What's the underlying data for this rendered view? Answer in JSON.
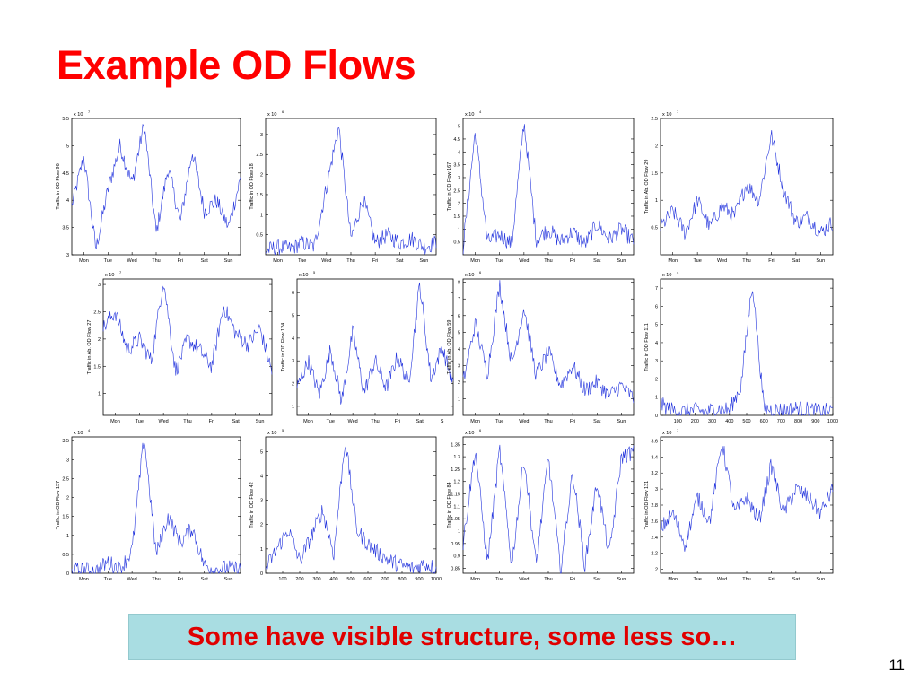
{
  "slide": {
    "title": "Example OD Flows",
    "caption": "Some have visible structure, some less so…",
    "page_number": "11",
    "colors": {
      "title": "#ff0000",
      "caption_text": "#e00000",
      "caption_bg": "#a9dde2",
      "line": "#2233dd"
    }
  },
  "chart_data": [
    {
      "type": "line",
      "ylabel": "Traffic in OD Flow 96",
      "multiplier": "x 10",
      "exponent": "7",
      "yticks": [
        "3",
        "3.5",
        "4",
        "4.5",
        "5",
        "5.5"
      ],
      "ylim": [
        3,
        5.5
      ],
      "xticks": [
        "Mon",
        "Tue",
        "Wed",
        "Thu",
        "Fri",
        "Sat",
        "Sun"
      ],
      "xlim": [
        0,
        7
      ],
      "series": [
        {
          "x_step": 0.5,
          "values": [
            3.9,
            4.8,
            3.1,
            4.2,
            5.0,
            4.3,
            5.4,
            3.4,
            4.6,
            3.6,
            4.9,
            3.8,
            4.0,
            3.5,
            4.4
          ]
        }
      ]
    },
    {
      "type": "line",
      "ylabel": "Traffic in OD Flow 18",
      "multiplier": "x 10",
      "exponent": "6",
      "yticks": [
        "0.5",
        "1",
        "1.5",
        "2",
        "2.5",
        "3"
      ],
      "ylim": [
        0,
        3.4
      ],
      "xticks": [
        "Mon",
        "Tue",
        "Wed",
        "Thu",
        "Fri",
        "Sat",
        "Sun"
      ],
      "xlim": [
        0,
        7
      ],
      "series": [
        {
          "x_step": 0.5,
          "values": [
            0.1,
            0.2,
            0.15,
            0.3,
            0.2,
            1.7,
            3.2,
            0.4,
            1.4,
            0.3,
            0.5,
            0.3,
            0.4,
            0.2,
            0.3
          ]
        }
      ]
    },
    {
      "type": "line",
      "ylabel": "Traffic in OD Flow 167",
      "multiplier": "x 10",
      "exponent": "4",
      "yticks": [
        "0.5",
        "1",
        "1.5",
        "2",
        "2.5",
        "3",
        "3.5",
        "4",
        "4.5",
        "5"
      ],
      "ylim": [
        0,
        5.3
      ],
      "xticks": [
        "Mon",
        "Tue",
        "Wed",
        "Thu",
        "Fri",
        "Sat",
        "Sun"
      ],
      "xlim": [
        0,
        7
      ],
      "series": [
        {
          "x_step": 0.5,
          "values": [
            0.3,
            4.8,
            0.5,
            0.8,
            0.4,
            5.2,
            0.6,
            1.0,
            0.5,
            0.9,
            0.4,
            1.2,
            0.6,
            1.0,
            0.5
          ]
        }
      ]
    },
    {
      "type": "line",
      "ylabel": "Traffic in Ab. OD Flow 29",
      "multiplier": "x 10",
      "exponent": "7",
      "yticks": [
        "0.5",
        "1",
        "1.5",
        "2",
        "2.5"
      ],
      "ylim": [
        0,
        2.5
      ],
      "xticks": [
        "Mon",
        "Tue",
        "Wed",
        "Thu",
        "Fri",
        "Sat",
        "Sun"
      ],
      "xlim": [
        0,
        7
      ],
      "series": [
        {
          "x_step": 0.5,
          "values": [
            0.5,
            0.8,
            0.4,
            1.0,
            0.5,
            0.9,
            0.7,
            1.3,
            1.0,
            2.2,
            1.2,
            0.6,
            0.7,
            0.4,
            0.6
          ]
        }
      ]
    },
    {
      "type": "line",
      "ylabel": "Traffic in Ab. OD Flow 27",
      "multiplier": "x 10",
      "exponent": "7",
      "yticks": [
        "1",
        "1.5",
        "2",
        "2.5",
        "3"
      ],
      "ylim": [
        0.6,
        3.1
      ],
      "xticks": [
        "Mon",
        "Tue",
        "Wed",
        "Thu",
        "Fri",
        "Sat",
        "Sun"
      ],
      "xlim": [
        0,
        7
      ],
      "series": [
        {
          "x_step": 0.5,
          "values": [
            2.2,
            2.5,
            1.8,
            2.0,
            1.6,
            3.1,
            1.4,
            2.0,
            1.8,
            1.5,
            2.6,
            2.1,
            1.9,
            2.2,
            1.4
          ]
        }
      ]
    },
    {
      "type": "line",
      "ylabel": "Traffic in OD Flow 124",
      "multiplier": "x 10",
      "exponent": "5",
      "yticks": [
        "1",
        "2",
        "3",
        "4",
        "5",
        "6"
      ],
      "ylim": [
        0.6,
        6.6
      ],
      "xticks": [
        "Mon",
        "Tue",
        "Wed",
        "Thu",
        "Fri",
        "Sat",
        "S"
      ],
      "xlim": [
        0,
        7
      ],
      "series": [
        {
          "x_step": 0.5,
          "values": [
            1.8,
            3.0,
            1.5,
            3.5,
            1.2,
            4.3,
            1.6,
            3.0,
            1.8,
            3.2,
            2.0,
            6.4,
            2.2,
            3.6,
            2.0
          ]
        }
      ]
    },
    {
      "type": "line",
      "ylabel": "Traffic in Ab. OD Flow 59",
      "multiplier": "x 10",
      "exponent": "6",
      "yticks": [
        "1",
        "2",
        "3",
        "4",
        "5",
        "6",
        "7",
        "8"
      ],
      "ylim": [
        0,
        8.2
      ],
      "xticks": [
        "Mon",
        "Tue",
        "Wed",
        "Thu",
        "Fri",
        "Sat",
        "Sun"
      ],
      "xlim": [
        0,
        7
      ],
      "series": [
        {
          "x_step": 0.5,
          "values": [
            2.0,
            5.5,
            2.5,
            7.9,
            3.0,
            6.5,
            2.4,
            3.8,
            1.8,
            3.0,
            1.5,
            2.0,
            1.2,
            1.8,
            1.0
          ]
        }
      ]
    },
    {
      "type": "line",
      "ylabel": "Traffic in OD Flow 111",
      "multiplier": "x 10",
      "exponent": "4",
      "yticks": [
        "0",
        "1",
        "2",
        "3",
        "4",
        "5",
        "6",
        "7"
      ],
      "ylim": [
        0,
        7.5
      ],
      "xticks": [
        "100",
        "200",
        "300",
        "400",
        "500",
        "600",
        "700",
        "800",
        "900",
        "1000"
      ],
      "xlim": [
        0,
        1000
      ],
      "series": [
        {
          "x_step": 67,
          "values": [
            0.6,
            0.3,
            0.2,
            0.3,
            0.2,
            0.4,
            0.3,
            1.6,
            7.3,
            0.4,
            0.3,
            0.3,
            0.4,
            0.3,
            0.2,
            0.3
          ]
        }
      ]
    },
    {
      "type": "line",
      "ylabel": "Traffic in OD Flow 157",
      "multiplier": "x 10",
      "exponent": "4",
      "yticks": [
        "0",
        "0.5",
        "1",
        "1.5",
        "2",
        "2.5",
        "3",
        "3.5"
      ],
      "ylim": [
        0,
        3.6
      ],
      "xticks": [
        "Mon",
        "Tue",
        "Wed",
        "Thu",
        "Fri",
        "Sat",
        "Sun"
      ],
      "xlim": [
        0,
        7
      ],
      "series": [
        {
          "x_step": 0.5,
          "values": [
            0.05,
            0.1,
            0.05,
            0.3,
            0.1,
            0.6,
            3.6,
            0.5,
            1.5,
            0.8,
            1.2,
            0.2,
            0.1,
            0.15,
            0.1
          ]
        }
      ]
    },
    {
      "type": "line",
      "ylabel": "Traffic in OD Flow 42",
      "multiplier": "x 10",
      "exponent": "5",
      "yticks": [
        "0",
        "1",
        "2",
        "3",
        "4",
        "5"
      ],
      "ylim": [
        0,
        5.6
      ],
      "xticks": [
        "100",
        "200",
        "300",
        "400",
        "500",
        "600",
        "700",
        "800",
        "900",
        "1000"
      ],
      "xlim": [
        0,
        1000
      ],
      "series": [
        {
          "x_step": 67,
          "values": [
            0.2,
            1.0,
            1.8,
            0.5,
            1.5,
            2.6,
            0.8,
            5.5,
            1.8,
            1.2,
            0.8,
            0.5,
            0.3,
            0.2,
            0.4,
            0.2
          ]
        }
      ]
    },
    {
      "type": "line",
      "ylabel": "Traffic in OD Flow 84",
      "multiplier": "x 10",
      "exponent": "6",
      "yticks": [
        "0.85",
        "0.9",
        "0.95",
        "1",
        "1.05",
        "1.1",
        "1.15",
        "1.2",
        "1.25",
        "1.3",
        "1.35"
      ],
      "ylim": [
        0.83,
        1.38
      ],
      "xticks": [
        "Mon",
        "Tue",
        "Wed",
        "Thu",
        "Fri",
        "Sat",
        "Sun"
      ],
      "xlim": [
        0,
        7
      ],
      "series": [
        {
          "x_step": 0.5,
          "values": [
            0.95,
            1.33,
            0.87,
            1.33,
            0.86,
            1.3,
            0.86,
            1.3,
            0.84,
            1.24,
            0.86,
            1.2,
            0.9,
            1.3,
            1.32
          ]
        }
      ]
    },
    {
      "type": "line",
      "ylabel": "Traffic in OD Flow 131",
      "multiplier": "x 10",
      "exponent": "7",
      "yticks": [
        "2",
        "2.2",
        "2.4",
        "2.6",
        "2.8",
        "3",
        "3.2",
        "3.4",
        "3.6"
      ],
      "ylim": [
        1.95,
        3.65
      ],
      "xticks": [
        "Mon",
        "Tue",
        "Wed",
        "Thu",
        "Fri",
        "Sat",
        "Sun"
      ],
      "xlim": [
        0,
        7
      ],
      "series": [
        {
          "x_step": 0.5,
          "values": [
            2.5,
            2.7,
            2.3,
            2.9,
            2.6,
            3.6,
            2.7,
            2.9,
            2.6,
            3.3,
            2.7,
            3.0,
            2.9,
            2.7,
            3.0
          ]
        }
      ]
    }
  ]
}
